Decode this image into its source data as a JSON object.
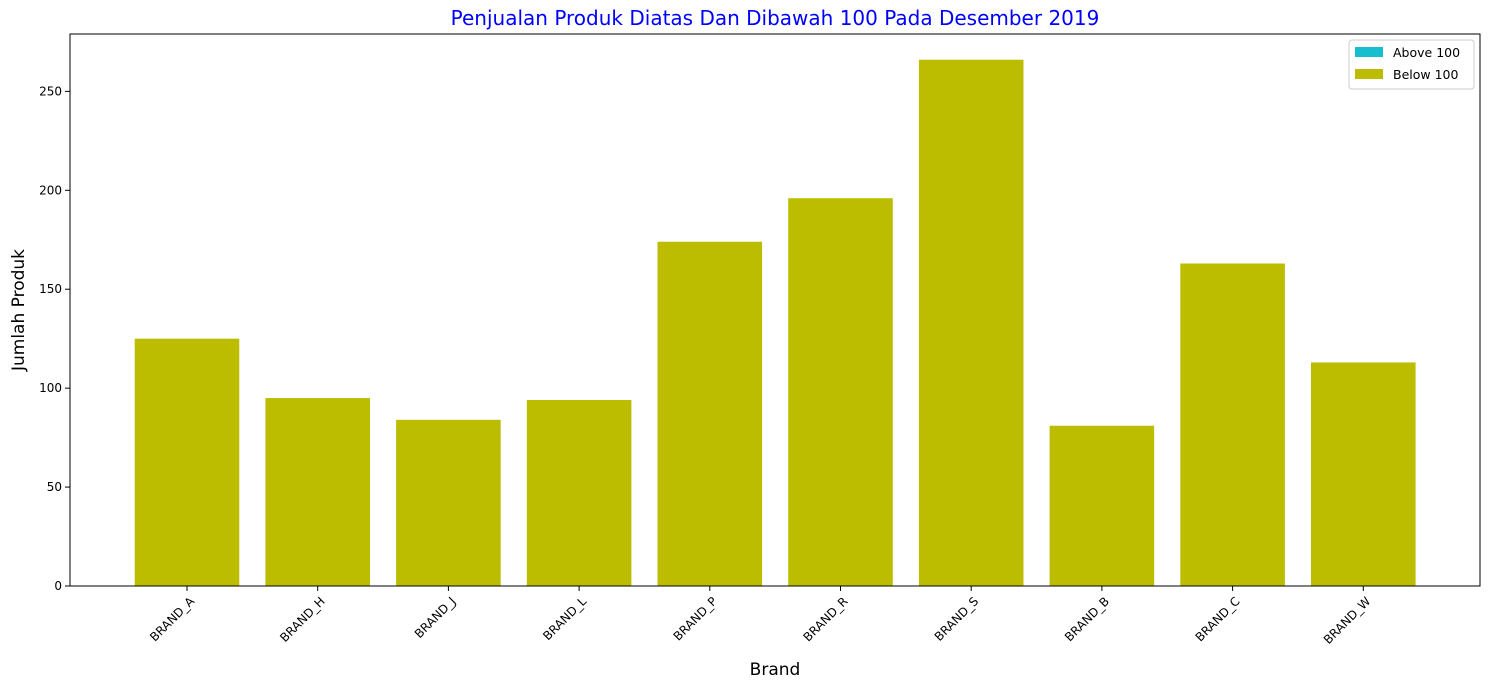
{
  "chart_data": {
    "type": "bar",
    "title": "Penjualan Produk Diatas Dan Dibawah 100 Pada Desember 2019",
    "xlabel": "Brand",
    "ylabel": "Jumlah Produk",
    "categories": [
      "BRAND_A",
      "BRAND_H",
      "BRAND_J",
      "BRAND_L",
      "BRAND_P",
      "BRAND_R",
      "BRAND_S",
      "BRAND_B",
      "BRAND_C",
      "BRAND_W"
    ],
    "series": [
      {
        "name": "Above 100",
        "color": "#17becf",
        "values": [
          0,
          0,
          0,
          0,
          0,
          0,
          0,
          0,
          0,
          0
        ]
      },
      {
        "name": "Below 100",
        "color": "#bcbd00",
        "values": [
          125,
          95,
          84,
          94,
          174,
          196,
          266,
          81,
          163,
          113
        ]
      }
    ],
    "ylim": [
      0,
      279
    ],
    "yticks": [
      0,
      50,
      100,
      150,
      200,
      250
    ],
    "title_color": "#0000ff",
    "legend_position": "upper right",
    "grid": false
  }
}
